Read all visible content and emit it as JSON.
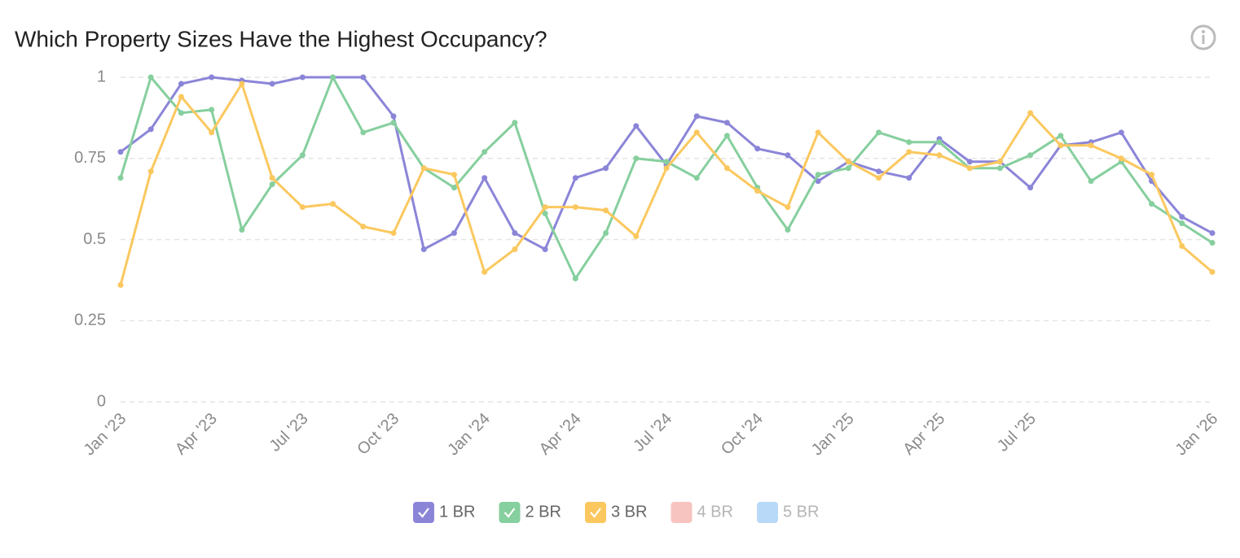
{
  "chart_data": {
    "type": "line",
    "title": "Which Property Sizes Have the Highest Occupancy?",
    "categories": [
      "Jan '23",
      null,
      null,
      "Apr '23",
      null,
      null,
      "Jul '23",
      null,
      null,
      "Oct '23",
      null,
      null,
      "Jan '24",
      null,
      null,
      "Apr '24",
      null,
      null,
      "Jul '24",
      null,
      null,
      "Oct '24",
      null,
      null,
      "Jan '25",
      null,
      null,
      "Apr '25",
      null,
      null,
      "Jul '25",
      null,
      null,
      null,
      null,
      null,
      "Jan '26"
    ],
    "series": [
      {
        "name": "1 BR",
        "color": "#8b85d8",
        "values": [
          0.77,
          0.84,
          0.98,
          1.0,
          0.99,
          0.98,
          1.0,
          1.0,
          1.0,
          0.88,
          0.47,
          0.52,
          0.69,
          0.52,
          0.47,
          0.69,
          0.72,
          0.85,
          0.73,
          0.88,
          0.86,
          0.78,
          0.76,
          0.68,
          0.74,
          0.71,
          0.69,
          0.81,
          0.74,
          0.74,
          0.66,
          0.79,
          0.8,
          0.83,
          0.68,
          0.57,
          0.52
        ]
      },
      {
        "name": "2 BR",
        "color": "#86cf9e",
        "values": [
          0.69,
          1.0,
          0.89,
          0.9,
          0.53,
          0.67,
          0.76,
          1.0,
          0.83,
          0.86,
          0.72,
          0.66,
          0.77,
          0.86,
          0.58,
          0.38,
          0.52,
          0.75,
          0.74,
          0.69,
          0.82,
          0.66,
          0.53,
          0.7,
          0.72,
          0.83,
          0.8,
          0.8,
          0.72,
          0.72,
          0.76,
          0.82,
          0.68,
          0.74,
          0.61,
          0.55,
          0.49
        ]
      },
      {
        "name": "3 BR",
        "color": "#fbc85f",
        "values": [
          0.36,
          0.71,
          0.94,
          0.83,
          0.98,
          0.69,
          0.6,
          0.61,
          0.54,
          0.52,
          0.72,
          0.7,
          0.4,
          0.47,
          0.6,
          0.6,
          0.59,
          0.51,
          0.72,
          0.83,
          0.72,
          0.65,
          0.6,
          0.83,
          0.74,
          0.69,
          0.77,
          0.76,
          0.72,
          0.74,
          0.89,
          0.79,
          0.79,
          0.75,
          0.7,
          0.48,
          0.4
        ]
      }
    ],
    "hidden_series": [
      {
        "name": "4 BR",
        "color": "#f8c4c0"
      },
      {
        "name": "5 BR",
        "color": "#b9d9f8"
      }
    ],
    "ylim": [
      0,
      1
    ],
    "yticks": [
      0,
      0.25,
      0.5,
      0.75,
      1
    ],
    "grid": true
  }
}
